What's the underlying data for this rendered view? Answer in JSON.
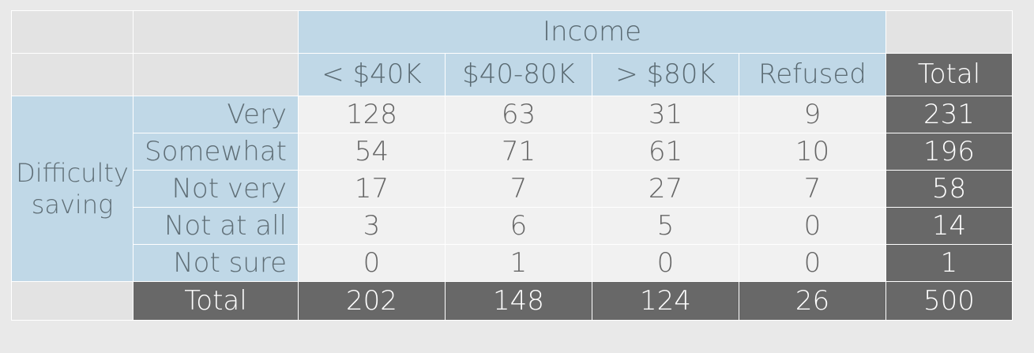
{
  "chart_data": {
    "type": "table",
    "column_group_label": "Income",
    "row_group_label": "Difficulty saving",
    "columns": [
      "< $40K",
      "$40-80K",
      "> $80K",
      "Refused"
    ],
    "total_label": "Total",
    "rows": [
      {
        "label": "Very",
        "values": [
          "128",
          "63",
          "31",
          "9"
        ],
        "total": "231"
      },
      {
        "label": "Somewhat",
        "values": [
          "54",
          "71",
          "61",
          "10"
        ],
        "total": "196"
      },
      {
        "label": "Not very",
        "values": [
          "17",
          "7",
          "27",
          "7"
        ],
        "total": "58"
      },
      {
        "label": "Not at all",
        "values": [
          "3",
          "6",
          "5",
          "0"
        ],
        "total": "14"
      },
      {
        "label": "Not sure",
        "values": [
          "0",
          "1",
          "0",
          "0"
        ],
        "total": "1"
      }
    ],
    "column_totals": [
      "202",
      "148",
      "124",
      "26"
    ],
    "grand_total": "500"
  }
}
